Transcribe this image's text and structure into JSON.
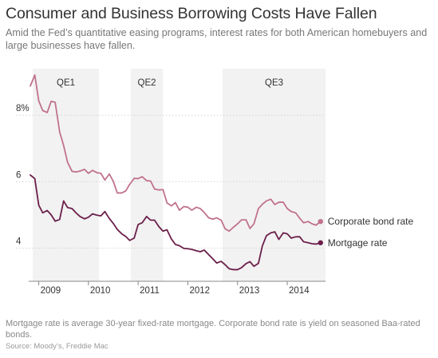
{
  "title": "Consumer and Business Borrowing Costs Have Fallen",
  "subtitle": "Amid the Fed’s quantitative easing programs, interest rates for both American homebuyers and large businesses have fallen.",
  "note": "Mortgage rate is average 30-year fixed-rate mortgage. Corporate bond rate is yield on seasoned Baa-rated bonds.",
  "source": "Source: Moody’s, Freddie Mac",
  "colors": {
    "corporate": "#c0728e",
    "mortgage": "#6b1f4a",
    "qe_band": "#f2f2f2"
  },
  "chart_data": {
    "type": "line",
    "x_unit": "year",
    "x_ticks": [
      {
        "value": 2009,
        "label": "2009"
      },
      {
        "value": 2010,
        "label": "2010"
      },
      {
        "value": 2011,
        "label": "2011"
      },
      {
        "value": 2012,
        "label": "2012"
      },
      {
        "value": 2013,
        "label": "2013"
      },
      {
        "value": 2014,
        "label": "2014"
      }
    ],
    "y_ticks": [
      {
        "value": 8,
        "label": "8%"
      },
      {
        "value": 6,
        "label": "6"
      },
      {
        "value": 4,
        "label": "4"
      }
    ],
    "xlim": [
      2008.83,
      2014.77
    ],
    "ylim": [
      3.0,
      9.4
    ],
    "grid": "horizontal",
    "bands": [
      {
        "label": "QE1",
        "start": 2008.88,
        "end": 2010.21
      },
      {
        "label": "QE2",
        "start": 2010.85,
        "end": 2011.5
      },
      {
        "label": "QE3",
        "start": 2012.7,
        "end": 2014.77
      }
    ],
    "series": [
      {
        "name": "Corporate bond rate",
        "color": "#c0728e",
        "x": [
          2008.83,
          2008.92,
          2009.0,
          2009.08,
          2009.17,
          2009.25,
          2009.33,
          2009.42,
          2009.5,
          2009.58,
          2009.67,
          2009.75,
          2009.83,
          2009.92,
          2010.0,
          2010.08,
          2010.17,
          2010.25,
          2010.33,
          2010.42,
          2010.5,
          2010.58,
          2010.67,
          2010.75,
          2010.83,
          2010.92,
          2011.0,
          2011.08,
          2011.17,
          2011.25,
          2011.33,
          2011.42,
          2011.5,
          2011.58,
          2011.67,
          2011.75,
          2011.83,
          2011.92,
          2012.0,
          2012.08,
          2012.17,
          2012.25,
          2012.33,
          2012.42,
          2012.5,
          2012.58,
          2012.67,
          2012.75,
          2012.83,
          2012.92,
          2013.0,
          2013.08,
          2013.17,
          2013.25,
          2013.33,
          2013.42,
          2013.5,
          2013.58,
          2013.67,
          2013.75,
          2013.83,
          2013.92,
          2014.0,
          2014.08,
          2014.17,
          2014.25,
          2014.33,
          2014.42,
          2014.5,
          2014.58,
          2014.67
        ],
        "values": [
          8.88,
          9.21,
          8.43,
          8.14,
          8.08,
          8.42,
          8.39,
          7.5,
          7.09,
          6.58,
          6.31,
          6.29,
          6.32,
          6.37,
          6.25,
          6.34,
          6.27,
          6.25,
          6.05,
          6.23,
          6.01,
          5.66,
          5.66,
          5.72,
          5.92,
          6.1,
          6.09,
          6.15,
          6.03,
          6.02,
          5.78,
          5.75,
          5.76,
          5.36,
          5.27,
          5.37,
          5.14,
          5.25,
          5.23,
          5.14,
          5.23,
          5.19,
          5.07,
          4.91,
          4.87,
          4.91,
          4.84,
          4.58,
          4.51,
          4.63,
          4.73,
          4.85,
          4.85,
          4.59,
          4.73,
          5.19,
          5.32,
          5.42,
          5.47,
          5.31,
          5.38,
          5.38,
          5.19,
          5.1,
          5.06,
          4.9,
          4.76,
          4.8,
          4.73,
          4.69,
          4.8
        ]
      },
      {
        "name": "Mortgage rate",
        "color": "#6b1f4a",
        "x": [
          2008.83,
          2008.92,
          2009.0,
          2009.08,
          2009.17,
          2009.25,
          2009.33,
          2009.42,
          2009.5,
          2009.58,
          2009.67,
          2009.75,
          2009.83,
          2009.92,
          2010.0,
          2010.08,
          2010.17,
          2010.25,
          2010.33,
          2010.42,
          2010.5,
          2010.58,
          2010.67,
          2010.75,
          2010.83,
          2010.92,
          2011.0,
          2011.08,
          2011.17,
          2011.25,
          2011.33,
          2011.42,
          2011.5,
          2011.58,
          2011.67,
          2011.75,
          2011.83,
          2011.92,
          2012.0,
          2012.08,
          2012.17,
          2012.25,
          2012.33,
          2012.42,
          2012.5,
          2012.58,
          2012.67,
          2012.75,
          2012.83,
          2012.92,
          2013.0,
          2013.08,
          2013.17,
          2013.25,
          2013.33,
          2013.42,
          2013.5,
          2013.58,
          2013.67,
          2013.75,
          2013.83,
          2013.92,
          2014.0,
          2014.08,
          2014.17,
          2014.25,
          2014.33,
          2014.42,
          2014.5,
          2014.58,
          2014.67
        ],
        "values": [
          6.2,
          6.09,
          5.29,
          5.06,
          5.13,
          5.0,
          4.81,
          4.86,
          5.42,
          5.22,
          5.19,
          5.06,
          4.95,
          4.88,
          4.93,
          5.03,
          4.99,
          4.97,
          5.1,
          4.89,
          4.74,
          4.56,
          4.43,
          4.35,
          4.23,
          4.3,
          4.71,
          4.76,
          4.95,
          4.84,
          4.84,
          4.64,
          4.51,
          4.55,
          4.27,
          4.11,
          4.07,
          3.99,
          3.98,
          3.96,
          3.92,
          3.89,
          3.94,
          3.8,
          3.68,
          3.55,
          3.6,
          3.5,
          3.38,
          3.35,
          3.35,
          3.41,
          3.53,
          3.59,
          3.45,
          3.54,
          4.07,
          4.37,
          4.46,
          4.49,
          4.26,
          4.46,
          4.43,
          4.3,
          4.34,
          4.34,
          4.19,
          4.16,
          4.13,
          4.12,
          4.16
        ]
      }
    ]
  }
}
